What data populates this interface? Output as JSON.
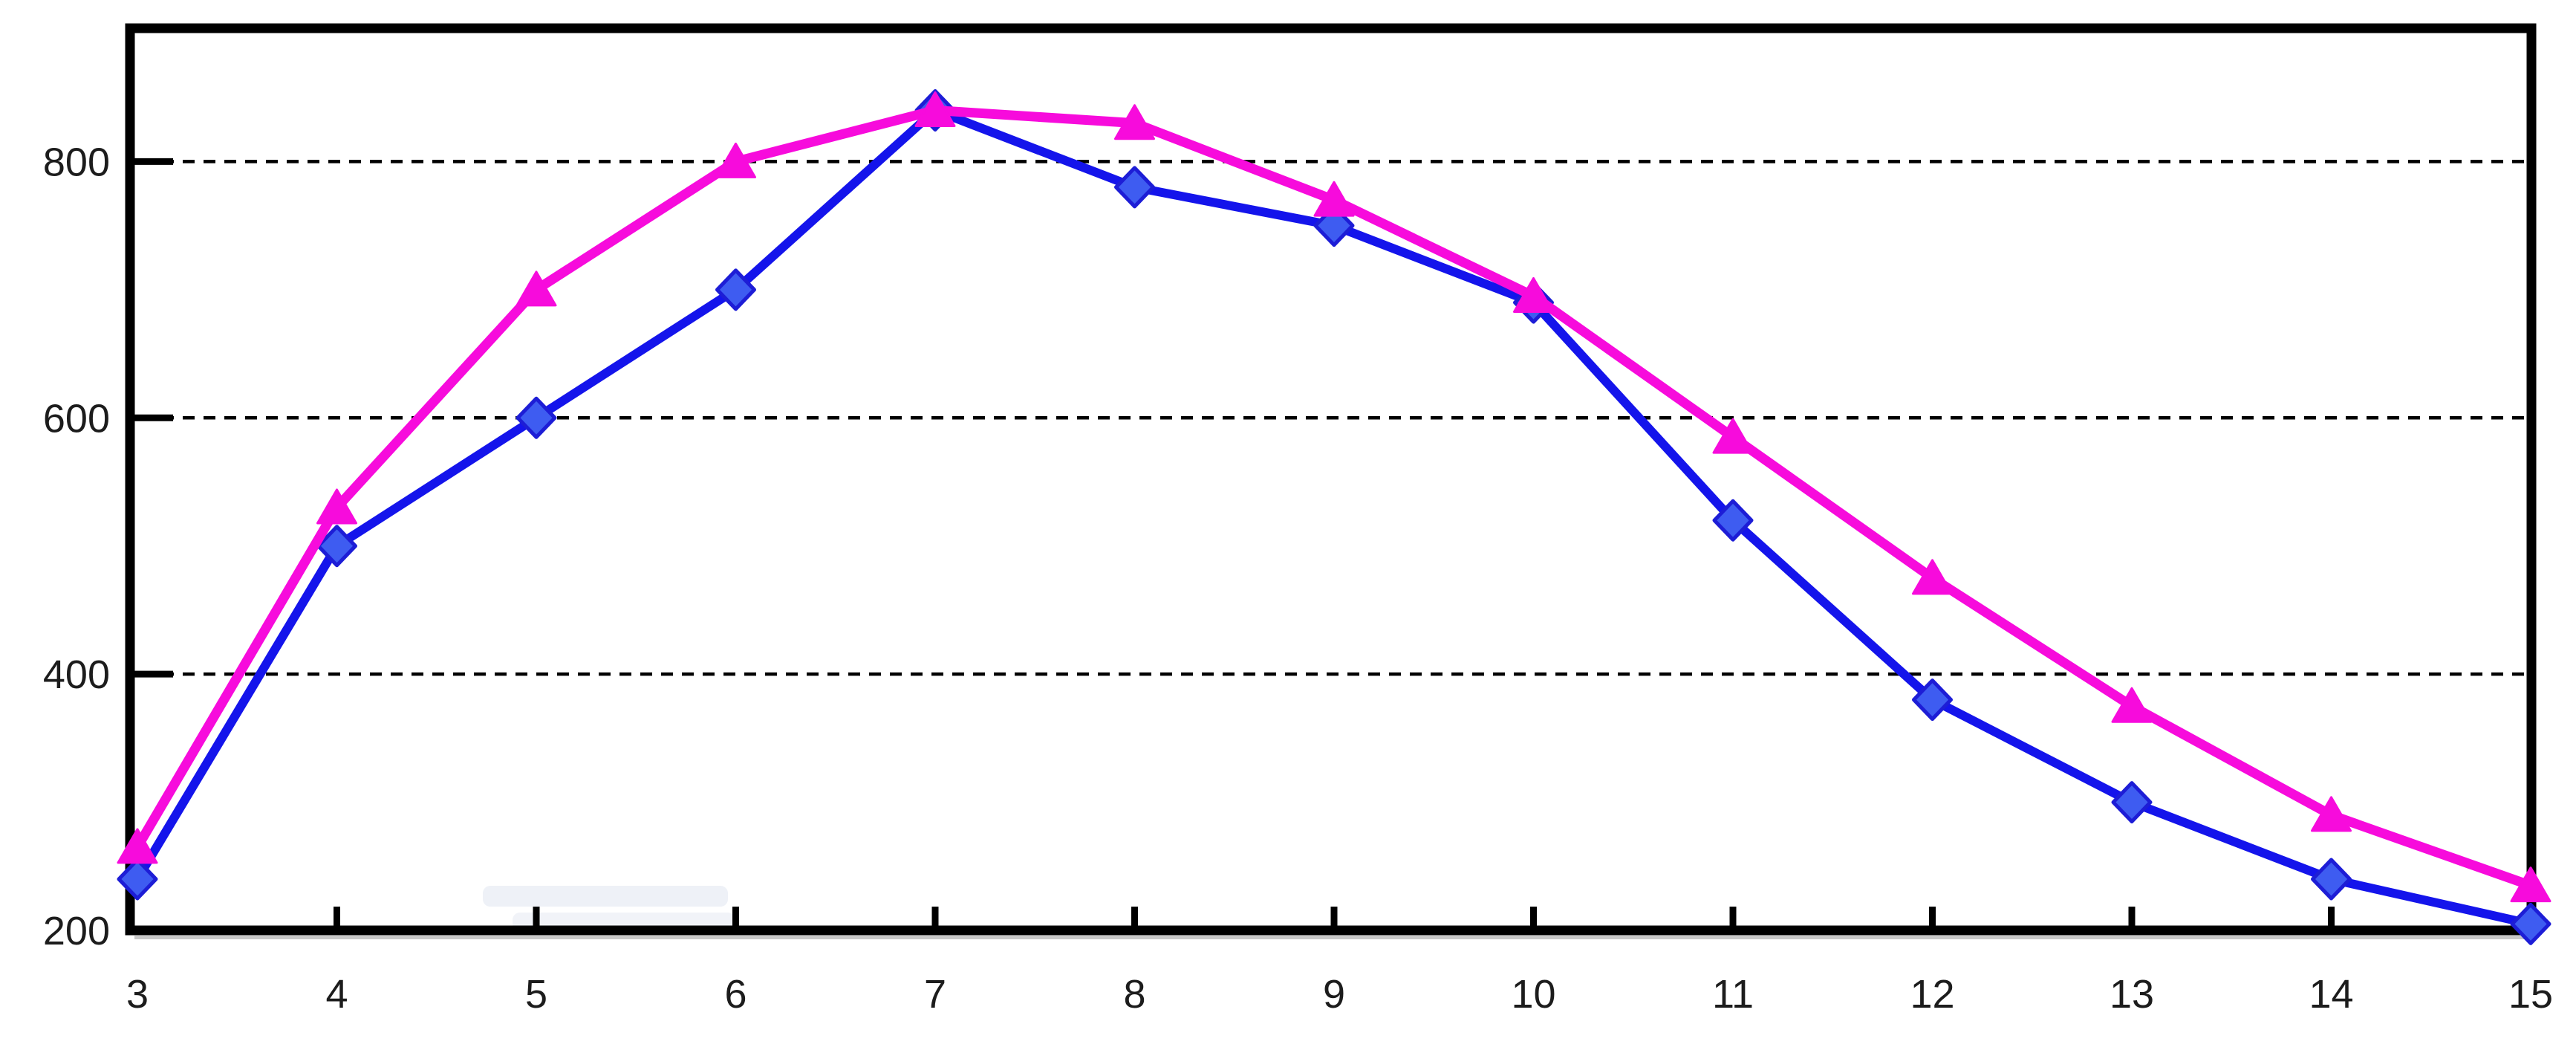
{
  "chart_data": {
    "type": "line",
    "title": "",
    "xlabel": "",
    "ylabel": "",
    "x": [
      3,
      4,
      5,
      6,
      7,
      8,
      9,
      10,
      11,
      12,
      13,
      14,
      15
    ],
    "xtick_labels": [
      "3",
      "4",
      "5",
      "6",
      "7",
      "8",
      "9",
      "10",
      "11",
      "12",
      "13",
      "14",
      "15"
    ],
    "ytick_values": [
      200,
      400,
      600,
      800
    ],
    "ytick_labels": [
      "200",
      "400",
      "600",
      "800"
    ],
    "ylim": [
      200,
      900
    ],
    "xlim": [
      3,
      15
    ],
    "grid": {
      "style": "dashed",
      "orientation": "horizontal",
      "at_values": [
        400,
        600,
        800
      ],
      "color": "#000000"
    },
    "legend": "none",
    "series": [
      {
        "name": "blue-diamond-series",
        "marker": "diamond",
        "line_color": "#1414EB",
        "marker_fill": "#3E5CF1",
        "marker_stroke": "#1D1DD6",
        "values": [
          240,
          500,
          600,
          700,
          840,
          780,
          750,
          690,
          520,
          380,
          300,
          240,
          205
        ]
      },
      {
        "name": "magenta-triangle-series",
        "marker": "triangle-up",
        "line_color": "#F70BDC",
        "marker_fill": "#F70BDC",
        "marker_stroke": "#F70BDC",
        "values": [
          265,
          530,
          700,
          800,
          840,
          830,
          770,
          695,
          585,
          475,
          375,
          290,
          235
        ]
      }
    ],
    "axis": {
      "frame_color": "#000000",
      "tick_label_color": "#1c1c1c",
      "tick_label_font_size": 54,
      "shadow_color": "#c8c8c8"
    }
  }
}
